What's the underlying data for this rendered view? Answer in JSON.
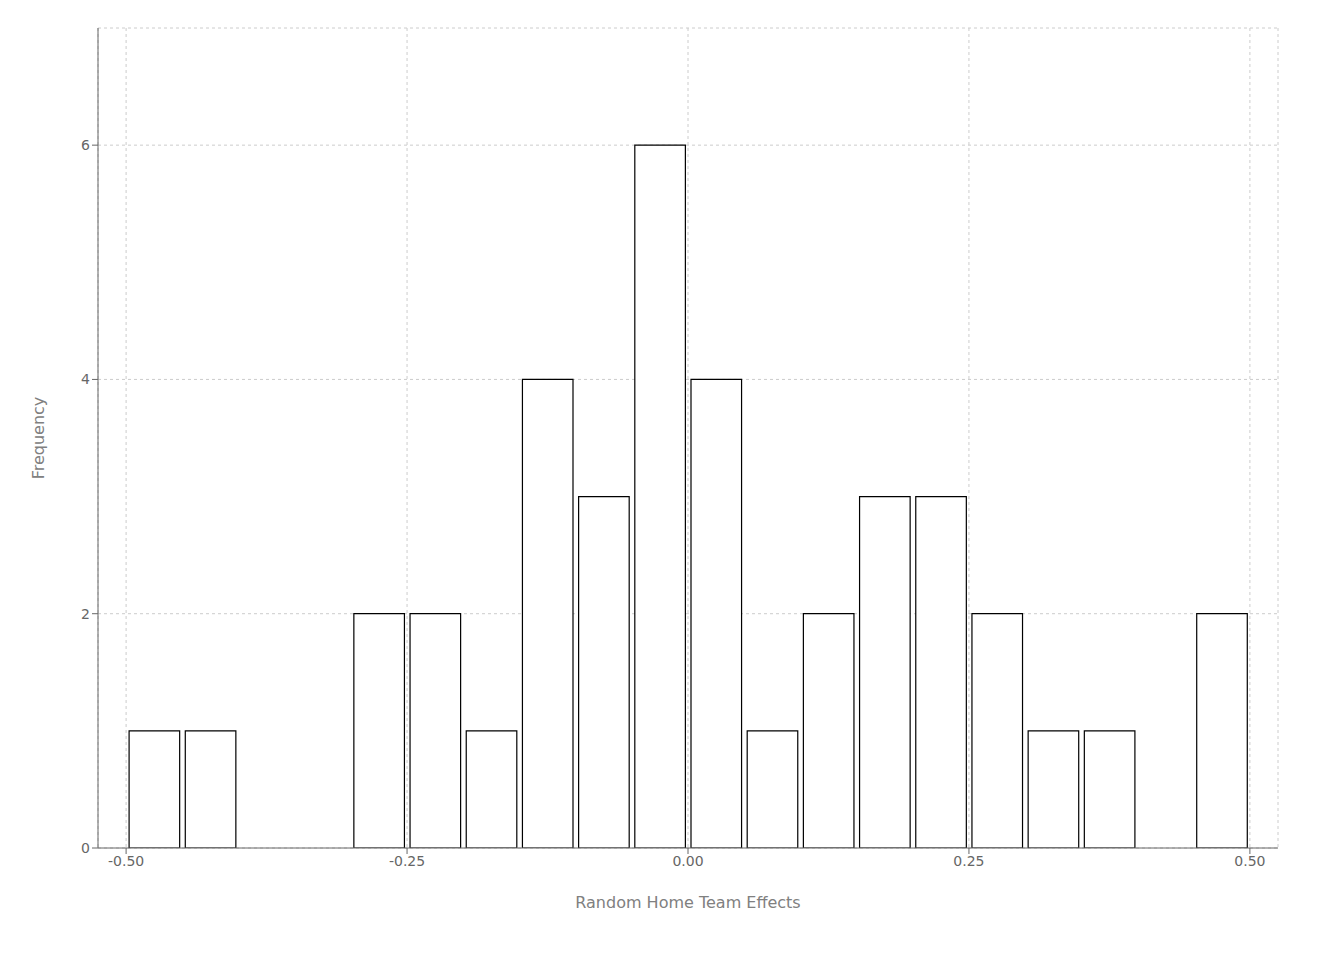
{
  "chart_data": {
    "type": "histogram",
    "bins": [
      -0.5,
      -0.45,
      -0.4,
      -0.35,
      -0.3,
      -0.25,
      -0.2,
      -0.15,
      -0.1,
      -0.05,
      0.0,
      0.05,
      0.1,
      0.15,
      0.2,
      0.25,
      0.3,
      0.35,
      0.4,
      0.45,
      0.5
    ],
    "counts": [
      1,
      1,
      0,
      0,
      2,
      2,
      1,
      4,
      3,
      6,
      4,
      1,
      2,
      3,
      3,
      2,
      1,
      1,
      0,
      2
    ],
    "xlabel": "Random Home Team Effects",
    "ylabel": "Frequency",
    "xlim": [
      -0.525,
      0.525
    ],
    "ylim": [
      0,
      7.0
    ],
    "xticks": [
      {
        "value": -0.5,
        "label": "-0.50"
      },
      -0.25,
      {
        "value": 0.0,
        "label": "0.00"
      },
      0.25,
      {
        "value": 0.5,
        "label": "0.50"
      }
    ],
    "yticks": [
      0,
      2,
      4,
      6
    ],
    "color": "#ffffff",
    "grid": true
  }
}
